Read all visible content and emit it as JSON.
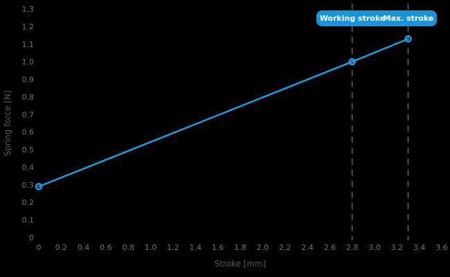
{
  "chart_data": {
    "type": "line",
    "title": "",
    "x_axis": {
      "label": "Stroke [mm]",
      "min": 0,
      "max": 3.6,
      "tick_values": [
        0,
        0.2,
        0.4,
        0.6,
        0.8,
        1.0,
        1.2,
        1.4,
        1.6,
        1.8,
        2.0,
        2.2,
        2.4,
        2.6,
        2.8,
        3.0,
        3.2,
        3.4,
        3.6
      ],
      "tick_labels": [
        "0",
        "0.2",
        "0.4",
        "0.6",
        "0.8",
        "1.0",
        "1.2",
        "1.4",
        "1.6",
        "1.8",
        "2.0",
        "2.2",
        "2.4",
        "2.6",
        "2.8",
        "3.0",
        "3.2",
        "3.4",
        "3.6"
      ]
    },
    "y_axis": {
      "label": "Spring force [N]",
      "min": 0,
      "max": 1.3,
      "tick_values": [
        0,
        0.1,
        0.2,
        0.3,
        0.4,
        0.5,
        0.6,
        0.7,
        0.8,
        0.9,
        1.0,
        1.1,
        1.2,
        1.3
      ],
      "tick_labels": [
        "0",
        "0.1",
        "0.2",
        "0.3",
        "0.4",
        "0.5",
        "0.6",
        "0.7",
        "0.8",
        "0.9",
        "1.0",
        "1.1",
        "1.2",
        "1.3"
      ]
    },
    "grid": false,
    "legend_position": "top-right",
    "series": [
      {
        "name": "Spring force",
        "x": [
          0,
          2.8,
          3.3
        ],
        "y": [
          0.29,
          1.0,
          1.13
        ],
        "marker": "open-circle",
        "line_style": "solid"
      }
    ],
    "annotations": {
      "vlines": [
        {
          "x": 2.8,
          "label": "Working stroke"
        },
        {
          "x": 3.3,
          "label": "Max. stroke"
        }
      ]
    }
  },
  "badge": {
    "working_stroke_label": "Working stroke",
    "max_stroke_label": "Max. stroke"
  },
  "colors": {
    "background": "#000000",
    "line": "#1b9de3",
    "marker_stroke": "#1b9de3",
    "badge_background": "#1496d8",
    "badge_text": "#ffffff",
    "vline": "#4d4d4d",
    "tick_text": "#6f7072",
    "axis_title_text": "#56575a"
  }
}
